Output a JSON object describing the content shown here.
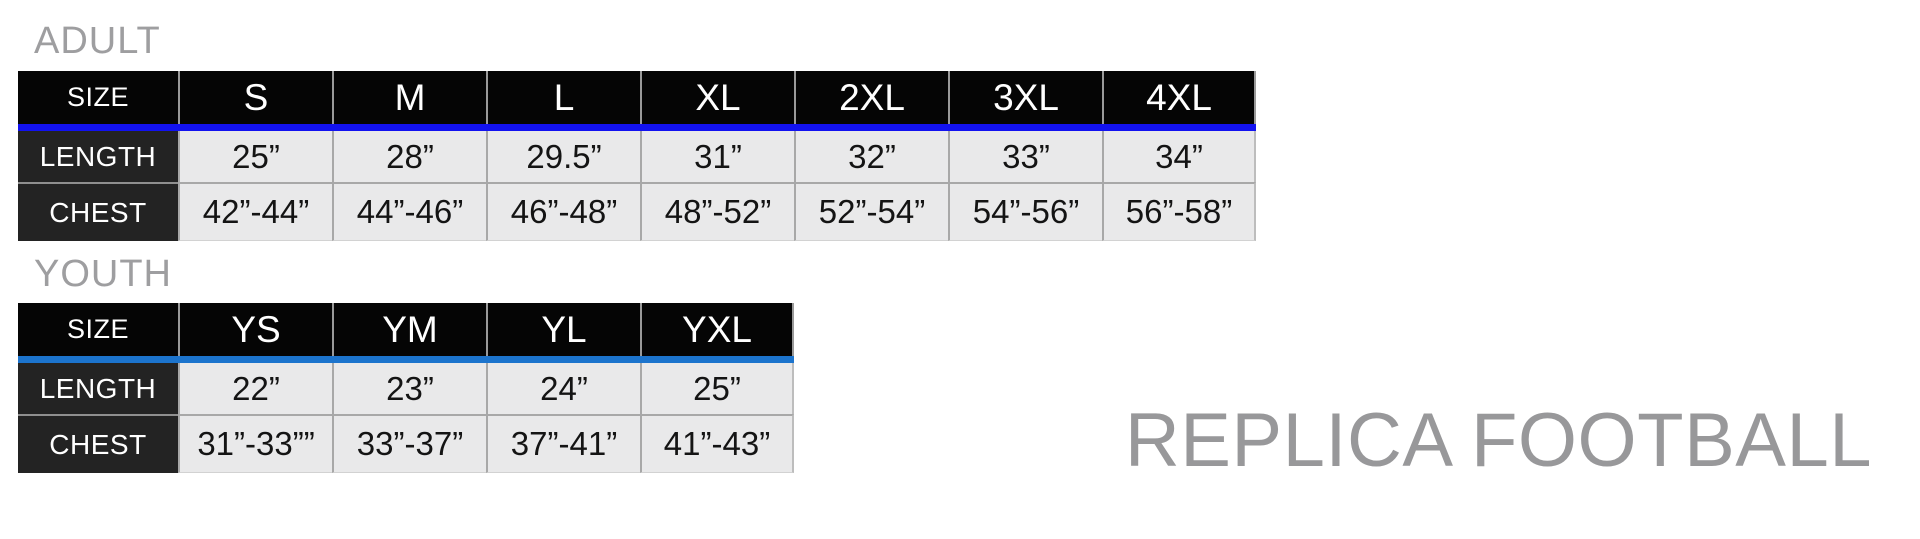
{
  "watermark": {
    "text": "REPLICA FOOTBALL",
    "color": "#98989a"
  },
  "adult": {
    "title": "ADULT",
    "accent_color": "#1212f0",
    "header": [
      "SIZE",
      "S",
      "M",
      "L",
      "XL",
      "2XL",
      "3XL",
      "4XL"
    ],
    "rows": [
      {
        "label": "LENGTH",
        "values": [
          "25”",
          "28”",
          "29.5”",
          "31”",
          "32”",
          "33”",
          "34”"
        ]
      },
      {
        "label": "CHEST",
        "values": [
          "42”-44”",
          "44”-46”",
          "46”-48”",
          "48”-52”",
          "52”-54”",
          "54”-56”",
          "56”-58”"
        ]
      }
    ]
  },
  "youth": {
    "title": "YOUTH",
    "accent_color": "#1c74cd",
    "header": [
      "SIZE",
      "YS",
      "YM",
      "YL",
      "YXL"
    ],
    "rows": [
      {
        "label": "LENGTH",
        "values": [
          "22”",
          "23”",
          "24”",
          "25”"
        ]
      },
      {
        "label": "CHEST",
        "values": [
          "31”-33””",
          "33”-37”",
          "37”-41”",
          "41”-43”"
        ]
      }
    ]
  }
}
